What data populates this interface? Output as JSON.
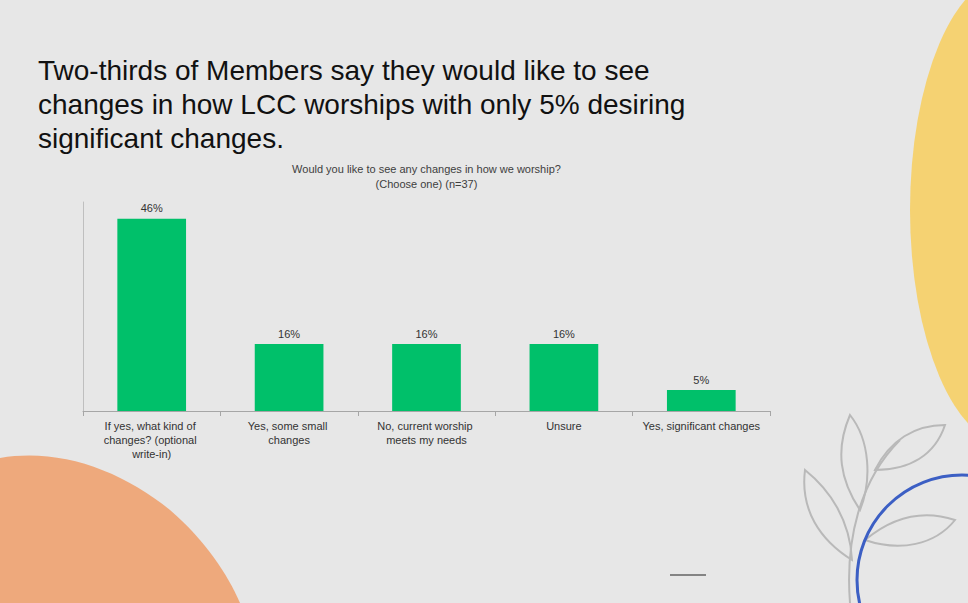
{
  "headline": "Two-thirds of Members say they would like to see changes in how LCC worships with only 5% desiring significant changes.",
  "chart_data": {
    "type": "bar",
    "title": "Would you like to see any changes in how we worship?",
    "subtitle": "(Choose one) (n=37)",
    "categories": [
      "If yes, what kind of changes? (optional write-in)",
      "Yes, some small changes",
      "No, current worship meets my needs",
      "Unsure",
      "Yes, significant changes"
    ],
    "values": [
      46,
      16,
      16,
      16,
      5
    ],
    "value_labels": [
      "46%",
      "16%",
      "16%",
      "16%",
      "5%"
    ],
    "color": "#00c06a",
    "ylim": [
      0,
      50
    ],
    "grid": false,
    "data_labels": true,
    "tick_labels": "x"
  }
}
